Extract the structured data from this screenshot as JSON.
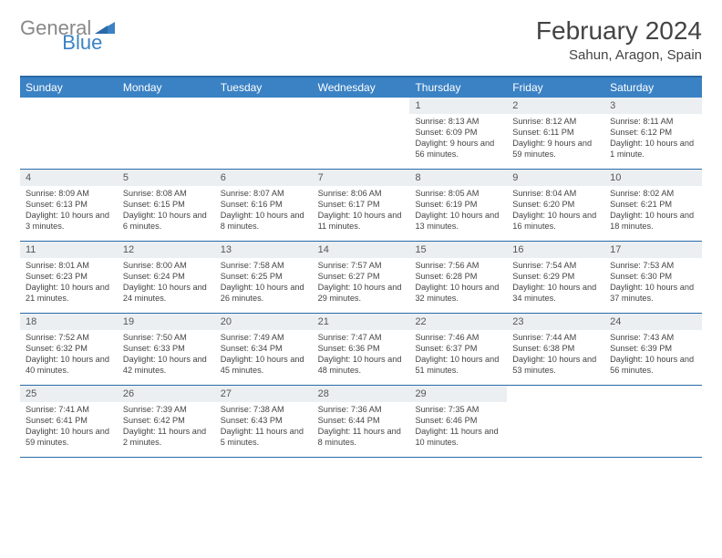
{
  "logo": {
    "text1": "General",
    "text2": "Blue"
  },
  "title": "February 2024",
  "location": "Sahun, Aragon, Spain",
  "colors": {
    "header_bar": "#3b82c4",
    "border": "#2a6aa8",
    "daynum_bg": "#eceff1",
    "logo_gray": "#888888",
    "logo_blue": "#3b82c4"
  },
  "daysOfWeek": [
    "Sunday",
    "Monday",
    "Tuesday",
    "Wednesday",
    "Thursday",
    "Friday",
    "Saturday"
  ],
  "weeks": [
    [
      {
        "n": "",
        "sr": "",
        "ss": "",
        "dl": ""
      },
      {
        "n": "",
        "sr": "",
        "ss": "",
        "dl": ""
      },
      {
        "n": "",
        "sr": "",
        "ss": "",
        "dl": ""
      },
      {
        "n": "",
        "sr": "",
        "ss": "",
        "dl": ""
      },
      {
        "n": "1",
        "sr": "Sunrise: 8:13 AM",
        "ss": "Sunset: 6:09 PM",
        "dl": "Daylight: 9 hours and 56 minutes."
      },
      {
        "n": "2",
        "sr": "Sunrise: 8:12 AM",
        "ss": "Sunset: 6:11 PM",
        "dl": "Daylight: 9 hours and 59 minutes."
      },
      {
        "n": "3",
        "sr": "Sunrise: 8:11 AM",
        "ss": "Sunset: 6:12 PM",
        "dl": "Daylight: 10 hours and 1 minute."
      }
    ],
    [
      {
        "n": "4",
        "sr": "Sunrise: 8:09 AM",
        "ss": "Sunset: 6:13 PM",
        "dl": "Daylight: 10 hours and 3 minutes."
      },
      {
        "n": "5",
        "sr": "Sunrise: 8:08 AM",
        "ss": "Sunset: 6:15 PM",
        "dl": "Daylight: 10 hours and 6 minutes."
      },
      {
        "n": "6",
        "sr": "Sunrise: 8:07 AM",
        "ss": "Sunset: 6:16 PM",
        "dl": "Daylight: 10 hours and 8 minutes."
      },
      {
        "n": "7",
        "sr": "Sunrise: 8:06 AM",
        "ss": "Sunset: 6:17 PM",
        "dl": "Daylight: 10 hours and 11 minutes."
      },
      {
        "n": "8",
        "sr": "Sunrise: 8:05 AM",
        "ss": "Sunset: 6:19 PM",
        "dl": "Daylight: 10 hours and 13 minutes."
      },
      {
        "n": "9",
        "sr": "Sunrise: 8:04 AM",
        "ss": "Sunset: 6:20 PM",
        "dl": "Daylight: 10 hours and 16 minutes."
      },
      {
        "n": "10",
        "sr": "Sunrise: 8:02 AM",
        "ss": "Sunset: 6:21 PM",
        "dl": "Daylight: 10 hours and 18 minutes."
      }
    ],
    [
      {
        "n": "11",
        "sr": "Sunrise: 8:01 AM",
        "ss": "Sunset: 6:23 PM",
        "dl": "Daylight: 10 hours and 21 minutes."
      },
      {
        "n": "12",
        "sr": "Sunrise: 8:00 AM",
        "ss": "Sunset: 6:24 PM",
        "dl": "Daylight: 10 hours and 24 minutes."
      },
      {
        "n": "13",
        "sr": "Sunrise: 7:58 AM",
        "ss": "Sunset: 6:25 PM",
        "dl": "Daylight: 10 hours and 26 minutes."
      },
      {
        "n": "14",
        "sr": "Sunrise: 7:57 AM",
        "ss": "Sunset: 6:27 PM",
        "dl": "Daylight: 10 hours and 29 minutes."
      },
      {
        "n": "15",
        "sr": "Sunrise: 7:56 AM",
        "ss": "Sunset: 6:28 PM",
        "dl": "Daylight: 10 hours and 32 minutes."
      },
      {
        "n": "16",
        "sr": "Sunrise: 7:54 AM",
        "ss": "Sunset: 6:29 PM",
        "dl": "Daylight: 10 hours and 34 minutes."
      },
      {
        "n": "17",
        "sr": "Sunrise: 7:53 AM",
        "ss": "Sunset: 6:30 PM",
        "dl": "Daylight: 10 hours and 37 minutes."
      }
    ],
    [
      {
        "n": "18",
        "sr": "Sunrise: 7:52 AM",
        "ss": "Sunset: 6:32 PM",
        "dl": "Daylight: 10 hours and 40 minutes."
      },
      {
        "n": "19",
        "sr": "Sunrise: 7:50 AM",
        "ss": "Sunset: 6:33 PM",
        "dl": "Daylight: 10 hours and 42 minutes."
      },
      {
        "n": "20",
        "sr": "Sunrise: 7:49 AM",
        "ss": "Sunset: 6:34 PM",
        "dl": "Daylight: 10 hours and 45 minutes."
      },
      {
        "n": "21",
        "sr": "Sunrise: 7:47 AM",
        "ss": "Sunset: 6:36 PM",
        "dl": "Daylight: 10 hours and 48 minutes."
      },
      {
        "n": "22",
        "sr": "Sunrise: 7:46 AM",
        "ss": "Sunset: 6:37 PM",
        "dl": "Daylight: 10 hours and 51 minutes."
      },
      {
        "n": "23",
        "sr": "Sunrise: 7:44 AM",
        "ss": "Sunset: 6:38 PM",
        "dl": "Daylight: 10 hours and 53 minutes."
      },
      {
        "n": "24",
        "sr": "Sunrise: 7:43 AM",
        "ss": "Sunset: 6:39 PM",
        "dl": "Daylight: 10 hours and 56 minutes."
      }
    ],
    [
      {
        "n": "25",
        "sr": "Sunrise: 7:41 AM",
        "ss": "Sunset: 6:41 PM",
        "dl": "Daylight: 10 hours and 59 minutes."
      },
      {
        "n": "26",
        "sr": "Sunrise: 7:39 AM",
        "ss": "Sunset: 6:42 PM",
        "dl": "Daylight: 11 hours and 2 minutes."
      },
      {
        "n": "27",
        "sr": "Sunrise: 7:38 AM",
        "ss": "Sunset: 6:43 PM",
        "dl": "Daylight: 11 hours and 5 minutes."
      },
      {
        "n": "28",
        "sr": "Sunrise: 7:36 AM",
        "ss": "Sunset: 6:44 PM",
        "dl": "Daylight: 11 hours and 8 minutes."
      },
      {
        "n": "29",
        "sr": "Sunrise: 7:35 AM",
        "ss": "Sunset: 6:46 PM",
        "dl": "Daylight: 11 hours and 10 minutes."
      },
      {
        "n": "",
        "sr": "",
        "ss": "",
        "dl": ""
      },
      {
        "n": "",
        "sr": "",
        "ss": "",
        "dl": ""
      }
    ]
  ]
}
